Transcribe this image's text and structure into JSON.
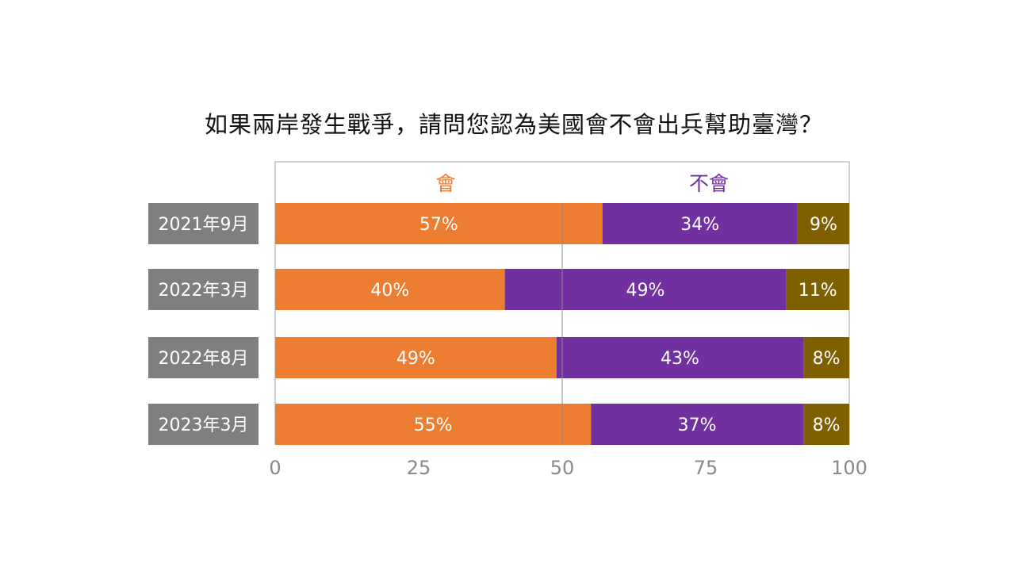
{
  "chart_data": {
    "type": "bar",
    "orientation": "horizontal",
    "stacked": true,
    "title": "如果兩岸發生戰爭，請問您認為美國會不會出兵幫助臺灣？",
    "categories": [
      "2021年9月",
      "2022年3月",
      "2022年8月",
      "2023年3月"
    ],
    "series": [
      {
        "name": "會",
        "color": "#ed7d31",
        "values": [
          57,
          40,
          49,
          55
        ],
        "labels": [
          "57%",
          "40%",
          "49%",
          "55%"
        ]
      },
      {
        "name": "不會",
        "color": "#7030a0",
        "values": [
          34,
          49,
          43,
          37
        ],
        "labels": [
          "34%",
          "49%",
          "43%",
          "37%"
        ]
      },
      {
        "name": "",
        "color": "#7f6000",
        "values": [
          9,
          11,
          8,
          8
        ],
        "labels": [
          "9%",
          "11%",
          "8%",
          "8%"
        ]
      }
    ],
    "xlim": [
      0,
      100
    ],
    "xticks": [
      "0",
      "25",
      "50",
      "75",
      "100"
    ],
    "grid": false,
    "legend_position": "top",
    "category_label_color": "#7f7f7f"
  }
}
